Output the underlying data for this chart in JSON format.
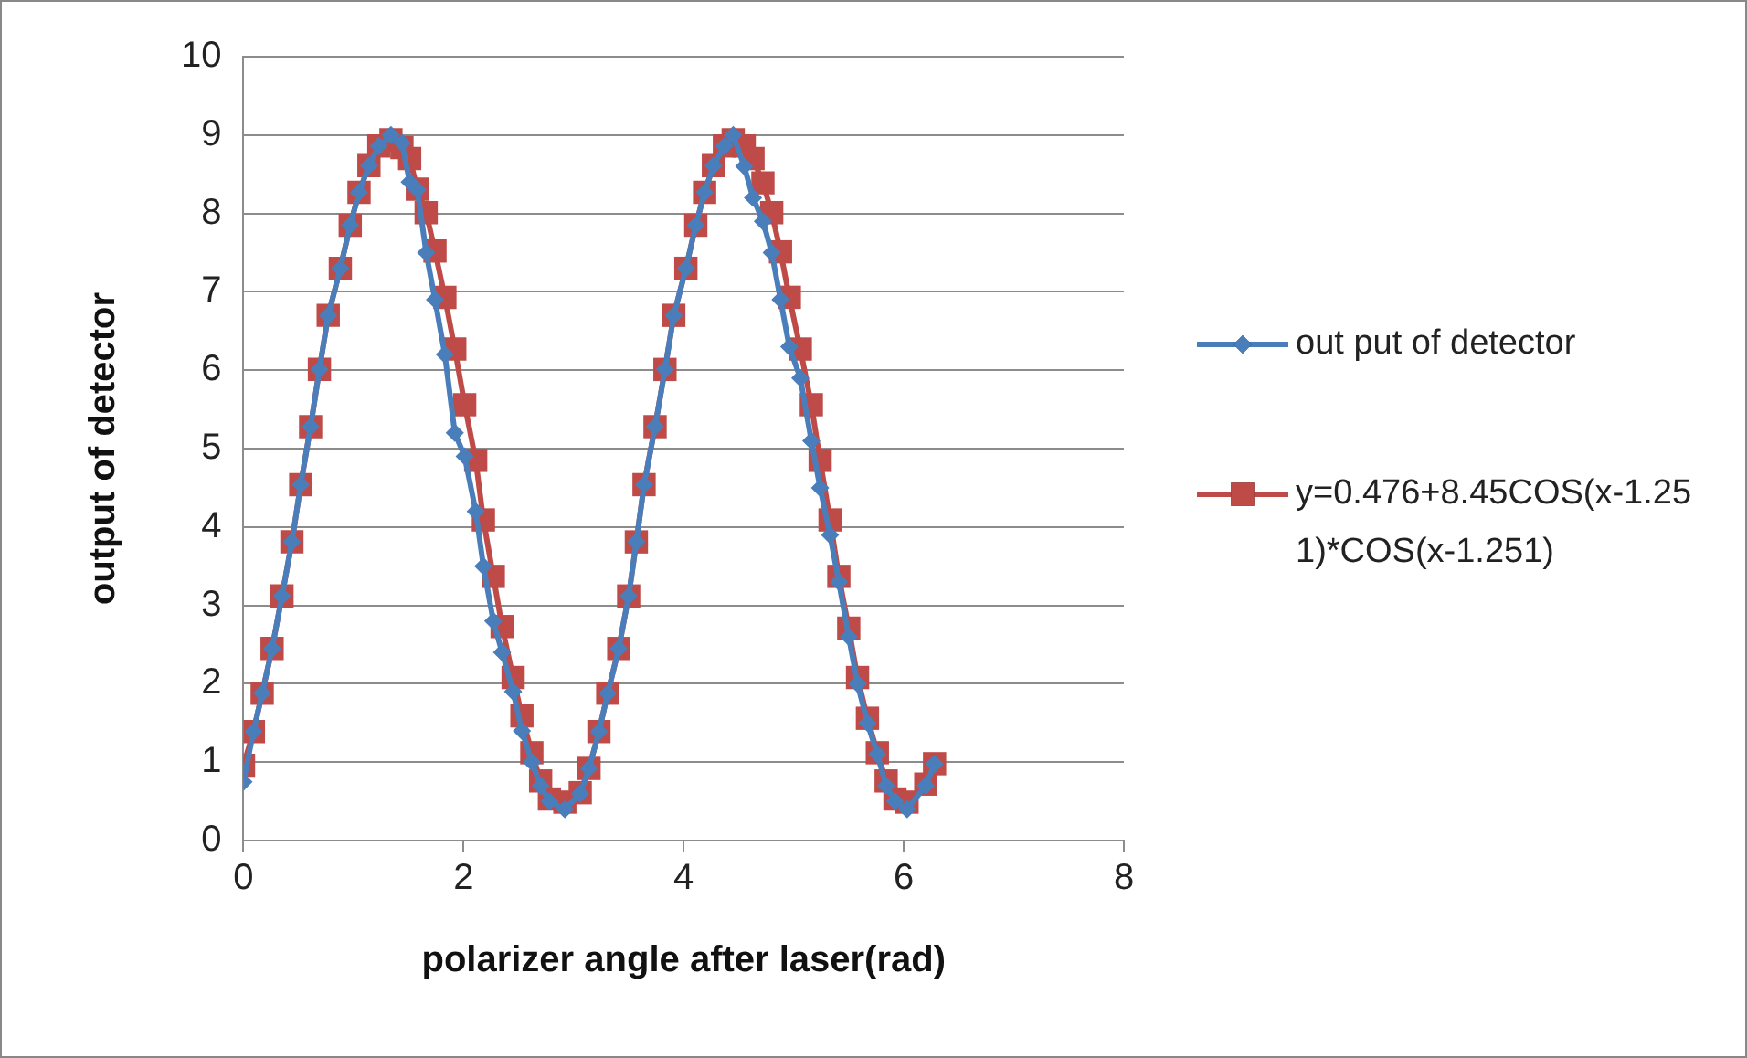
{
  "chart_data": {
    "type": "line",
    "xlabel": "polarizer angle after laser(rad)",
    "ylabel": "output of detector",
    "xlim": [
      0,
      8
    ],
    "xticks": [
      0,
      2,
      4,
      6,
      8
    ],
    "ylim": [
      0,
      10
    ],
    "yticks": [
      0,
      1,
      2,
      3,
      4,
      5,
      6,
      7,
      8,
      9,
      10
    ],
    "grid": "y",
    "legend": "right",
    "line_style": "solid",
    "x": [
      0,
      0.09,
      0.17,
      0.26,
      0.35,
      0.44,
      0.52,
      0.61,
      0.69,
      0.77,
      0.88,
      0.97,
      1.05,
      1.14,
      1.23,
      1.34,
      1.44,
      1.51,
      1.58,
      1.66,
      1.74,
      1.83,
      1.92,
      2.01,
      2.11,
      2.18,
      2.27,
      2.35,
      2.45,
      2.53,
      2.62,
      2.7,
      2.78,
      2.92,
      3.06,
      3.14,
      3.23,
      3.31,
      3.41,
      3.5,
      3.57,
      3.64,
      3.74,
      3.83,
      3.91,
      4.02,
      4.11,
      4.19,
      4.27,
      4.37,
      4.45,
      4.55,
      4.63,
      4.72,
      4.8,
      4.88,
      4.96,
      5.06,
      5.16,
      5.24,
      5.33,
      5.41,
      5.5,
      5.58,
      5.67,
      5.76,
      5.84,
      5.92,
      6.03,
      6.2,
      6.28
    ],
    "series": [
      {
        "name": "out put of detector",
        "color": "#4a7ebb",
        "marker": "diamond",
        "values": [
          0.75,
          1.39,
          1.88,
          2.45,
          3.12,
          3.81,
          4.54,
          5.28,
          6.01,
          6.7,
          7.3,
          7.85,
          8.27,
          8.61,
          8.86,
          9.0,
          8.9,
          8.4,
          8.3,
          7.5,
          6.9,
          6.2,
          5.2,
          4.9,
          4.2,
          3.5,
          2.8,
          2.4,
          1.9,
          1.4,
          1.0,
          0.7,
          0.5,
          0.4,
          0.6,
          0.92,
          1.39,
          1.88,
          2.45,
          3.12,
          3.81,
          4.54,
          5.28,
          6.01,
          6.7,
          7.3,
          7.85,
          8.27,
          8.61,
          8.86,
          9.0,
          8.6,
          8.2,
          7.9,
          7.5,
          6.9,
          6.3,
          5.9,
          5.1,
          4.5,
          3.9,
          3.3,
          2.6,
          2.0,
          1.5,
          1.1,
          0.7,
          0.5,
          0.4,
          0.7,
          0.98
        ]
      },
      {
        "name": "y=0.476+8.45COS(x-1.251)*COS(x-1.251)",
        "color": "#be4b48",
        "marker": "square",
        "values": [
          0.96,
          1.39,
          1.88,
          2.45,
          3.12,
          3.81,
          4.54,
          5.28,
          6.01,
          6.7,
          7.3,
          7.85,
          8.27,
          8.61,
          8.86,
          8.94,
          8.84,
          8.7,
          8.31,
          8.01,
          7.52,
          6.93,
          6.27,
          5.56,
          4.85,
          4.09,
          3.37,
          2.73,
          2.08,
          1.59,
          1.12,
          0.76,
          0.53,
          0.49,
          0.61,
          0.92,
          1.39,
          1.88,
          2.45,
          3.12,
          3.81,
          4.54,
          5.28,
          6.01,
          6.7,
          7.3,
          7.85,
          8.27,
          8.61,
          8.86,
          8.94,
          8.86,
          8.7,
          8.39,
          8.01,
          7.51,
          6.93,
          6.27,
          5.56,
          4.85,
          4.09,
          3.37,
          2.71,
          2.08,
          1.56,
          1.12,
          0.76,
          0.53,
          0.49,
          0.72,
          0.98
        ]
      }
    ]
  }
}
